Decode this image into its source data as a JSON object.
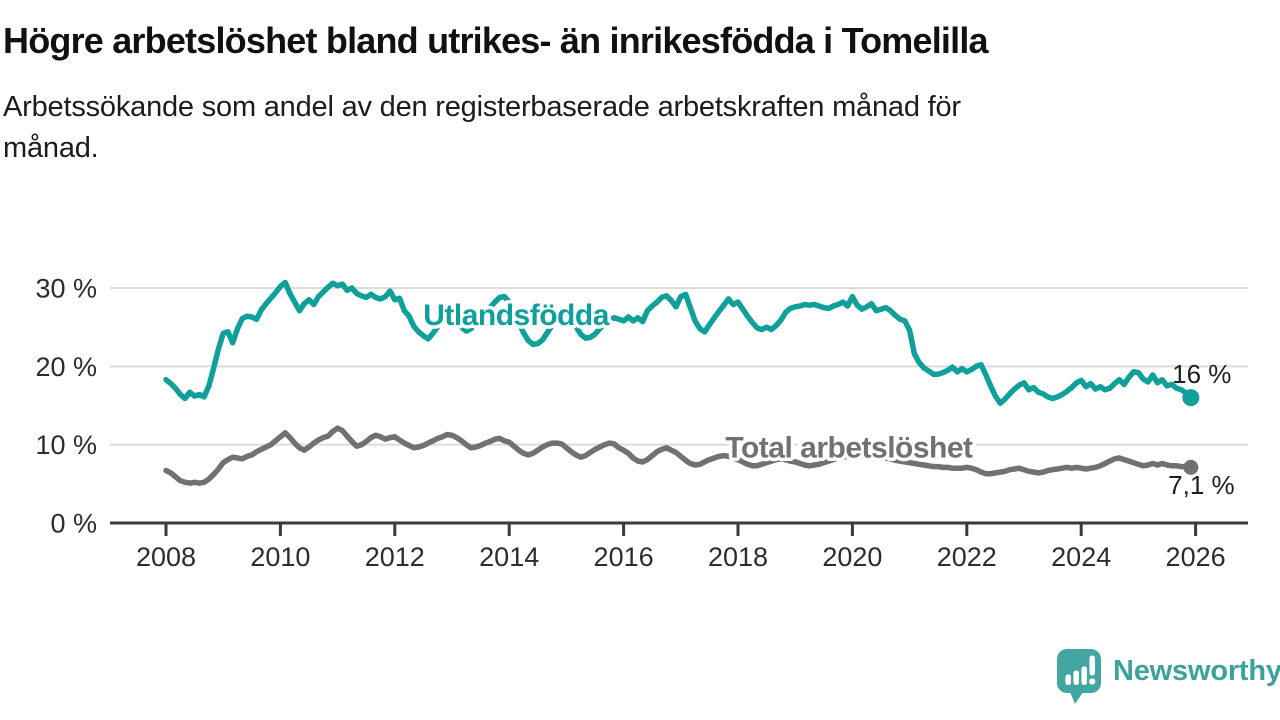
{
  "header": {
    "title": "Högre arbetslöshet bland utrikes- än inrikesfödda i Tomelilla",
    "subtitle": "Arbetssökande som andel av den registerbaserade arbetskraften månad för månad.",
    "subtitle_lines": [
      "Arbetssökande som andel av den registerbaserade arbetskraften månad för",
      "månad."
    ]
  },
  "branding": {
    "name": "Newsworthy",
    "logo_icon": "newsworthy-speech-bubble-bar-chart-icon",
    "logo_color": "#43a7a1",
    "text_color": "#3ea29c"
  },
  "colors": {
    "series_foreign_born": "#10a09a",
    "series_total": "#717171",
    "grid": "#dcdcdc",
    "axis": "#3a3a3a",
    "tick_label": "#2d2d2d",
    "annotation_text": "#1f1f1f"
  },
  "chart_data": {
    "type": "line",
    "title": "Högre arbetslöshet bland utrikes- än inrikesfödda i Tomelilla",
    "subtitle": "Arbetssökande som andel av den registerbaserade arbetskraften månad för månad.",
    "xlabel": "",
    "ylabel": "",
    "grid": "horizontal",
    "x_start": 2008.0,
    "x_step_years": 0.0833333,
    "xlim": [
      2007.0,
      2026.9
    ],
    "ylim": [
      0,
      33
    ],
    "x_ticks": [
      {
        "value": 2008,
        "label": "2008"
      },
      {
        "value": 2010,
        "label": "2010"
      },
      {
        "value": 2012,
        "label": "2012"
      },
      {
        "value": 2014,
        "label": "2014"
      },
      {
        "value": 2016,
        "label": "2016"
      },
      {
        "value": 2018,
        "label": "2018"
      },
      {
        "value": 2020,
        "label": "2020"
      },
      {
        "value": 2022,
        "label": "2022"
      },
      {
        "value": 2024,
        "label": "2024"
      },
      {
        "value": 2026,
        "label": "2026"
      }
    ],
    "y_ticks": [
      {
        "value": 0,
        "label": "0 %"
      },
      {
        "value": 10,
        "label": "10 %"
      },
      {
        "value": 20,
        "label": "20 %"
      },
      {
        "value": 30,
        "label": "30 %"
      }
    ],
    "y_gridlines": [
      10,
      20,
      30
    ],
    "series": [
      {
        "id": "utlandsfodda",
        "name": "Utlandsfödda",
        "color": "#10a09a",
        "label_anchor": {
          "x": 2014.12,
          "y": 26.6
        },
        "end_dot_radius": 8.5,
        "end_label": "16 %",
        "end_value": 16,
        "end_label_anchor": {
          "x": 2025.59,
          "y": 17.9
        },
        "values": [
          18.3,
          17.8,
          17.2,
          16.4,
          15.9,
          16.7,
          16.2,
          16.4,
          16.1,
          17.5,
          19.8,
          22.2,
          24.2,
          24.4,
          23.0,
          24.8,
          26.1,
          26.4,
          26.3,
          26.0,
          27.2,
          28.0,
          28.7,
          29.4,
          30.2,
          30.7,
          29.3,
          28.2,
          27.1,
          28.0,
          28.5,
          27.9,
          28.9,
          29.5,
          30.1,
          30.6,
          30.3,
          30.5,
          29.7,
          30.0,
          29.3,
          29.0,
          28.8,
          29.2,
          28.8,
          28.6,
          28.9,
          29.6,
          28.5,
          28.7,
          27.1,
          26.4,
          25.1,
          24.4,
          23.9,
          23.5,
          24.2,
          25.1,
          26.0,
          26.5,
          26.8,
          26.2,
          25.0,
          24.5,
          24.8,
          25.4,
          26.2,
          26.8,
          27.5,
          28.2,
          28.8,
          28.9,
          28.2,
          27.0,
          25.6,
          24.3,
          23.3,
          22.8,
          22.9,
          23.4,
          24.3,
          25.2,
          26.0,
          26.6,
          26.9,
          26.2,
          25.1,
          24.1,
          23.6,
          23.7,
          24.1,
          24.8,
          25.4,
          25.9,
          26.2,
          26.0,
          25.8,
          26.3,
          25.8,
          26.2,
          25.7,
          27.1,
          27.7,
          28.2,
          28.8,
          29.0,
          28.4,
          27.6,
          28.9,
          29.2,
          27.5,
          25.8,
          24.8,
          24.4,
          25.3,
          26.2,
          27.0,
          27.8,
          28.6,
          27.9,
          28.2,
          27.3,
          26.4,
          25.6,
          24.9,
          24.7,
          25.0,
          24.7,
          25.2,
          25.9,
          26.9,
          27.4,
          27.6,
          27.7,
          27.9,
          27.8,
          27.9,
          27.7,
          27.5,
          27.4,
          27.7,
          27.9,
          28.2,
          27.7,
          28.9,
          27.8,
          27.3,
          27.6,
          28.0,
          27.1,
          27.3,
          27.5,
          27.1,
          26.5,
          26.0,
          25.8,
          24.6,
          21.6,
          20.5,
          19.8,
          19.4,
          19.0,
          19.0,
          19.2,
          19.5,
          19.9,
          19.3,
          19.7,
          19.3,
          19.6,
          20.0,
          20.2,
          18.9,
          17.5,
          16.2,
          15.3,
          15.8,
          16.5,
          17.1,
          17.6,
          17.9,
          17.0,
          17.3,
          16.7,
          16.5,
          16.1,
          15.9,
          16.1,
          16.4,
          16.8,
          17.3,
          17.9,
          18.2,
          17.4,
          17.8,
          17.1,
          17.4,
          17.0,
          17.2,
          17.8,
          18.3,
          17.7,
          18.6,
          19.3,
          19.2,
          18.4,
          18.0,
          18.9,
          17.9,
          18.3,
          17.5,
          17.7,
          17.2,
          17.0,
          16.6,
          16.0
        ]
      },
      {
        "id": "total",
        "name": "Total arbetslöshet",
        "color": "#717171",
        "label_anchor": {
          "x": 2019.94,
          "y": 9.7
        },
        "end_dot_radius": 7.5,
        "end_label": "7,1 %",
        "end_value": 7.1,
        "end_label_anchor": {
          "x": 2025.52,
          "y": 3.7
        },
        "values": [
          6.7,
          6.4,
          5.9,
          5.4,
          5.2,
          5.1,
          5.2,
          5.1,
          5.2,
          5.6,
          6.2,
          6.9,
          7.7,
          8.1,
          8.4,
          8.3,
          8.2,
          8.5,
          8.7,
          9.1,
          9.4,
          9.7,
          10.0,
          10.5,
          11.0,
          11.5,
          10.9,
          10.2,
          9.6,
          9.3,
          9.7,
          10.2,
          10.6,
          10.9,
          11.1,
          11.7,
          12.1,
          11.8,
          11.1,
          10.4,
          9.8,
          10.0,
          10.4,
          10.9,
          11.2,
          11.0,
          10.7,
          10.9,
          11.0,
          10.6,
          10.2,
          9.9,
          9.6,
          9.7,
          9.9,
          10.2,
          10.5,
          10.8,
          11.0,
          11.3,
          11.2,
          10.9,
          10.5,
          10.0,
          9.6,
          9.7,
          9.9,
          10.2,
          10.4,
          10.7,
          10.8,
          10.5,
          10.3,
          9.8,
          9.3,
          8.9,
          8.7,
          8.9,
          9.3,
          9.7,
          10.0,
          10.2,
          10.2,
          10.1,
          9.6,
          9.1,
          8.7,
          8.4,
          8.6,
          9.0,
          9.4,
          9.7,
          10.0,
          10.2,
          10.1,
          9.6,
          9.3,
          8.9,
          8.3,
          7.9,
          7.8,
          8.1,
          8.6,
          9.1,
          9.4,
          9.6,
          9.3,
          9.0,
          8.5,
          8.0,
          7.6,
          7.4,
          7.5,
          7.8,
          8.1,
          8.3,
          8.5,
          8.6,
          8.5,
          8.3,
          8.1,
          7.8,
          7.5,
          7.3,
          7.3,
          7.5,
          7.7,
          7.9,
          8.1,
          8.2,
          8.1,
          7.9,
          7.8,
          7.6,
          7.4,
          7.3,
          7.4,
          7.5,
          7.7,
          7.9,
          8.1,
          8.3,
          8.4,
          8.5,
          8.6,
          8.7,
          8.8,
          8.7,
          8.6,
          8.5,
          8.4,
          8.3,
          8.2,
          8.0,
          7.9,
          7.8,
          7.7,
          7.6,
          7.5,
          7.4,
          7.3,
          7.2,
          7.2,
          7.1,
          7.1,
          7.0,
          7.0,
          7.0,
          7.1,
          7.0,
          6.8,
          6.5,
          6.3,
          6.3,
          6.4,
          6.5,
          6.6,
          6.8,
          6.9,
          7.0,
          6.8,
          6.6,
          6.5,
          6.4,
          6.5,
          6.7,
          6.8,
          6.9,
          7.0,
          7.1,
          7.0,
          7.1,
          7.0,
          6.9,
          7.0,
          7.1,
          7.3,
          7.6,
          7.9,
          8.2,
          8.3,
          8.1,
          7.9,
          7.7,
          7.5,
          7.3,
          7.4,
          7.6,
          7.4,
          7.6,
          7.4,
          7.3,
          7.3,
          7.2,
          7.2,
          7.1
        ]
      }
    ]
  }
}
